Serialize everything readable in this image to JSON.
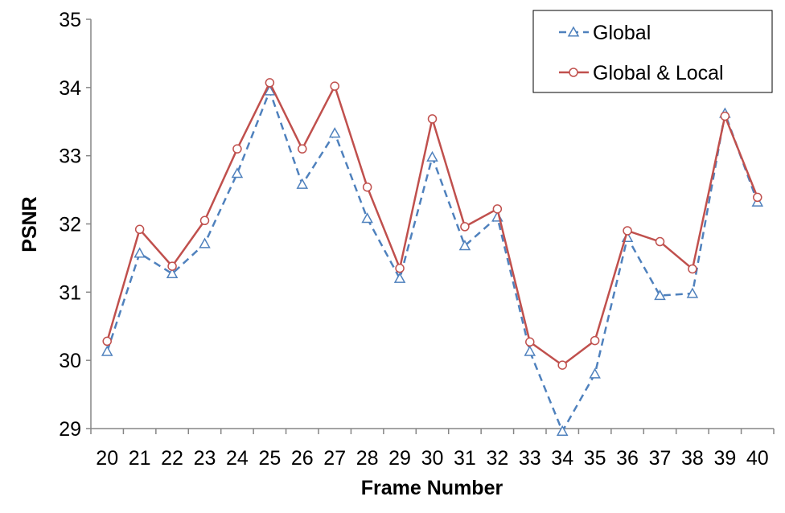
{
  "chart_data": {
    "type": "line",
    "title": "",
    "xlabel": "Frame Number",
    "ylabel": "PSNR",
    "categories": [
      "20",
      "21",
      "22",
      "23",
      "24",
      "25",
      "26",
      "27",
      "28",
      "29",
      "30",
      "31",
      "32",
      "33",
      "34",
      "35",
      "36",
      "37",
      "38",
      "39",
      "40"
    ],
    "ylim": [
      29,
      35
    ],
    "yticks": [
      "29",
      "30",
      "31",
      "32",
      "33",
      "34",
      "35"
    ],
    "grid": false,
    "legend_position": "top-right",
    "series": [
      {
        "name": "Global",
        "color": "#4F81BD",
        "line_style": "dashed",
        "marker": "triangle-icon",
        "values": [
          30.13,
          31.57,
          31.27,
          31.71,
          32.74,
          33.95,
          32.58,
          33.33,
          32.08,
          31.2,
          32.98,
          31.68,
          32.1,
          30.13,
          28.96,
          29.8,
          31.8,
          30.95,
          30.98,
          33.62,
          32.32
        ]
      },
      {
        "name": "Global & Local",
        "color": "#C0504D",
        "line_style": "solid",
        "marker": "circle-icon",
        "values": [
          30.28,
          31.92,
          31.38,
          32.05,
          33.1,
          34.07,
          33.1,
          34.02,
          32.54,
          31.35,
          33.54,
          31.96,
          32.22,
          30.27,
          29.93,
          30.29,
          31.9,
          31.74,
          31.34,
          33.58,
          32.39
        ]
      }
    ]
  }
}
